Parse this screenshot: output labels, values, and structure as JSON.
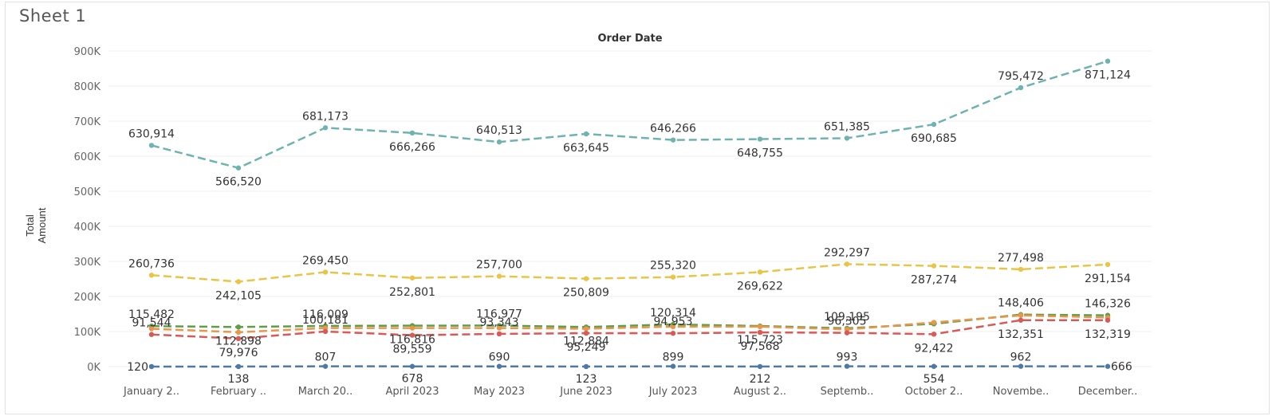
{
  "sheet": {
    "title": "Sheet 1"
  },
  "chart_data": {
    "type": "line",
    "title": "Order Date",
    "ylabel": "Total Amount",
    "xlabel": "",
    "ylim": [
      0,
      900000
    ],
    "yticks": [
      0,
      100000,
      200000,
      300000,
      400000,
      500000,
      600000,
      700000,
      800000,
      900000
    ],
    "ytick_labels": [
      "0K",
      "100K",
      "200K",
      "300K",
      "400K",
      "500K",
      "600K",
      "700K",
      "800K",
      "900K"
    ],
    "categories": [
      "January 2..",
      "February ..",
      "March 20..",
      "April 2023",
      "May 2023",
      "June 2023",
      "July 2023",
      "August 2..",
      "Septemb..",
      "October 2..",
      "Novembe..",
      "December.."
    ],
    "grid": true,
    "legend": "none",
    "series": [
      {
        "color": "#6fb3b0",
        "labeled": true,
        "values": [
          630914,
          566520,
          681173,
          666266,
          640513,
          663645,
          646266,
          648755,
          651385,
          690685,
          795472,
          871124
        ],
        "labels": [
          "630,914",
          "566,520",
          "681,173",
          "666,266",
          "640,513",
          "663,645",
          "646,266",
          "648,755",
          "651,385",
          "690,685",
          "795,472",
          "871,124"
        ]
      },
      {
        "color": "#e8c547",
        "labeled": true,
        "values": [
          260736,
          242105,
          269450,
          252801,
          257700,
          250809,
          255320,
          269622,
          292297,
          287274,
          277498,
          291154
        ],
        "labels": [
          "260,736",
          "242,105",
          "269,450",
          "252,801",
          "257,700",
          "250,809",
          "255,320",
          "269,622",
          "292,297",
          "287,274",
          "277,498",
          "291,154"
        ]
      },
      {
        "color": "#5e9e4a",
        "labeled": true,
        "values": [
          115482,
          112898,
          116009,
          116816,
          116977,
          112884,
          120314,
          115723,
          109195,
          122000,
          148406,
          146326
        ],
        "labels": [
          "115,482",
          "112,898",
          "116,009",
          "116,816",
          "116,977",
          "112,884",
          "120,314",
          "115,723",
          "109,195",
          "",
          "148,406",
          "146,326"
        ]
      },
      {
        "color": "#e8964a",
        "labeled": false,
        "values": [
          108000,
          98000,
          110000,
          110000,
          110000,
          108000,
          114000,
          114000,
          106000,
          126000,
          146000,
          140000
        ],
        "labels": []
      },
      {
        "color": "#d85a57",
        "labeled": true,
        "values": [
          91544,
          79976,
          100181,
          89559,
          93343,
          95249,
          94953,
          97568,
          96305,
          92422,
          132351,
          132319
        ],
        "labels": [
          "91,544",
          "79,976",
          "100,181",
          "89,559",
          "93,343",
          "95,249",
          "94,953",
          "97,568",
          "96,305",
          "92,422",
          "132,351",
          "132,319"
        ]
      },
      {
        "color": "#4e79a7",
        "labeled": true,
        "values": [
          120,
          138,
          807,
          678,
          690,
          123,
          899,
          212,
          993,
          554,
          962,
          666
        ],
        "labels": [
          "120",
          "138",
          "807",
          "678",
          "690",
          "123",
          "899",
          "212",
          "993",
          "554",
          "962",
          "666"
        ]
      }
    ]
  }
}
